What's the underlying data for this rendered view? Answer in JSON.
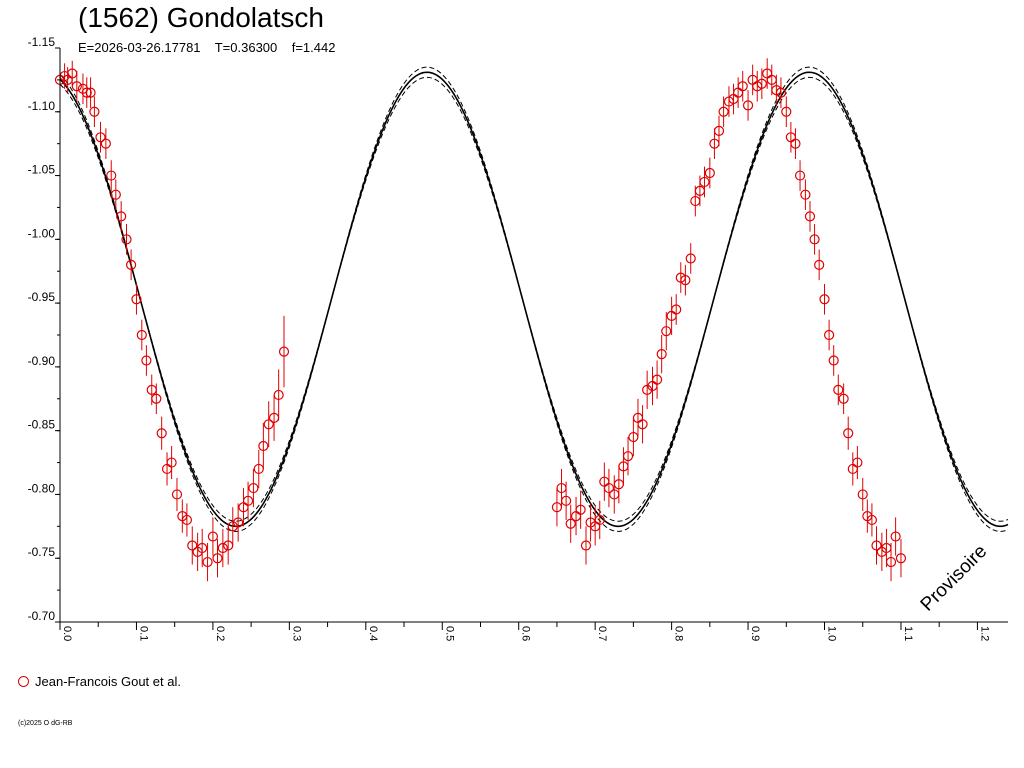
{
  "header": {
    "title": "(1562) Gondolatsch",
    "subtitle": "E=2026-03-26.17781    T=0.36300    f=1.442"
  },
  "legend": {
    "label": "Jean-Francois Gout et al."
  },
  "copyright": "(c)2025 O dG-RB",
  "chart_data": {
    "type": "scatter",
    "title": "(1562) Gondolatsch",
    "xlim": [
      0.0,
      1.24
    ],
    "ylim": [
      -1.15,
      -0.7
    ],
    "y_reversed": true,
    "x_ticks": [
      "0.0",
      "0.1",
      "0.2",
      "0.3",
      "0.4",
      "0.5",
      "0.6",
      "0.7",
      "0.8",
      "0.9",
      "1.0",
      "1.1",
      "1.2"
    ],
    "y_ticks": [
      "-1.15",
      "-1.10",
      "-1.05",
      "-1.00",
      "-0.95",
      "-0.90",
      "-0.85",
      "-0.80",
      "-0.75",
      "-0.70"
    ],
    "watermark": "Provisoire",
    "colors": {
      "points": "#e00000",
      "model": "#000000"
    },
    "model": {
      "mean": -0.953,
      "amplitude": 0.178,
      "phase_max": 0.48,
      "phase_extra": 0.985
    },
    "series": [
      {
        "name": "Jean-Francois Gout et al.",
        "points": [
          [
            0.0,
            -1.125,
            0.01
          ],
          [
            0.006,
            -1.128,
            0.01
          ],
          [
            0.01,
            -1.125,
            0.01
          ],
          [
            0.016,
            -1.13,
            0.01
          ],
          [
            0.022,
            -1.12,
            0.012
          ],
          [
            0.03,
            -1.118,
            0.012
          ],
          [
            0.035,
            -1.115,
            0.012
          ],
          [
            0.04,
            -1.115,
            0.012
          ],
          [
            0.045,
            -1.1,
            0.012
          ],
          [
            0.053,
            -1.08,
            0.012
          ],
          [
            0.06,
            -1.075,
            0.012
          ],
          [
            0.067,
            -1.05,
            0.012
          ],
          [
            0.073,
            -1.035,
            0.012
          ],
          [
            0.08,
            -1.018,
            0.012
          ],
          [
            0.087,
            -1.0,
            0.012
          ],
          [
            0.093,
            -0.98,
            0.012
          ],
          [
            0.1,
            -0.953,
            0.012
          ],
          [
            0.107,
            -0.925,
            0.012
          ],
          [
            0.113,
            -0.905,
            0.012
          ],
          [
            0.12,
            -0.882,
            0.012
          ],
          [
            0.126,
            -0.875,
            0.012
          ],
          [
            0.133,
            -0.848,
            0.013
          ],
          [
            0.14,
            -0.82,
            0.013
          ],
          [
            0.146,
            -0.825,
            0.013
          ],
          [
            0.153,
            -0.8,
            0.013
          ],
          [
            0.16,
            -0.783,
            0.013
          ],
          [
            0.166,
            -0.78,
            0.013
          ],
          [
            0.173,
            -0.76,
            0.015
          ],
          [
            0.18,
            -0.755,
            0.015
          ],
          [
            0.186,
            -0.758,
            0.015
          ],
          [
            0.193,
            -0.747,
            0.015
          ],
          [
            0.2,
            -0.767,
            0.015
          ],
          [
            0.206,
            -0.75,
            0.015
          ],
          [
            0.213,
            -0.758,
            0.015
          ],
          [
            0.22,
            -0.76,
            0.015
          ],
          [
            0.226,
            -0.775,
            0.015
          ],
          [
            0.233,
            -0.778,
            0.015
          ],
          [
            0.24,
            -0.79,
            0.015
          ],
          [
            0.246,
            -0.795,
            0.015
          ],
          [
            0.253,
            -0.805,
            0.015
          ],
          [
            0.26,
            -0.82,
            0.015
          ],
          [
            0.266,
            -0.838,
            0.018
          ],
          [
            0.273,
            -0.855,
            0.018
          ],
          [
            0.28,
            -0.86,
            0.018
          ],
          [
            0.286,
            -0.878,
            0.02
          ],
          [
            0.293,
            -0.912,
            0.028
          ],
          [
            0.65,
            -0.79,
            0.015
          ],
          [
            0.656,
            -0.805,
            0.015
          ],
          [
            0.662,
            -0.795,
            0.015
          ],
          [
            0.668,
            -0.777,
            0.015
          ],
          [
            0.675,
            -0.783,
            0.015
          ],
          [
            0.681,
            -0.788,
            0.015
          ],
          [
            0.688,
            -0.76,
            0.015
          ],
          [
            0.694,
            -0.778,
            0.015
          ],
          [
            0.7,
            -0.775,
            0.015
          ],
          [
            0.706,
            -0.78,
            0.015
          ],
          [
            0.712,
            -0.81,
            0.015
          ],
          [
            0.718,
            -0.805,
            0.015
          ],
          [
            0.725,
            -0.8,
            0.015
          ],
          [
            0.731,
            -0.808,
            0.015
          ],
          [
            0.737,
            -0.822,
            0.015
          ],
          [
            0.743,
            -0.83,
            0.015
          ],
          [
            0.75,
            -0.845,
            0.015
          ],
          [
            0.756,
            -0.86,
            0.015
          ],
          [
            0.762,
            -0.855,
            0.015
          ],
          [
            0.768,
            -0.882,
            0.015
          ],
          [
            0.775,
            -0.885,
            0.015
          ],
          [
            0.781,
            -0.89,
            0.015
          ],
          [
            0.787,
            -0.91,
            0.015
          ],
          [
            0.793,
            -0.928,
            0.015
          ],
          [
            0.8,
            -0.94,
            0.015
          ],
          [
            0.806,
            -0.945,
            0.012
          ],
          [
            0.812,
            -0.97,
            0.012
          ],
          [
            0.818,
            -0.968,
            0.012
          ],
          [
            0.825,
            -0.985,
            0.012
          ],
          [
            0.831,
            -1.03,
            0.012
          ],
          [
            0.837,
            -1.038,
            0.012
          ],
          [
            0.843,
            -1.045,
            0.012
          ],
          [
            0.85,
            -1.052,
            0.012
          ],
          [
            0.856,
            -1.075,
            0.012
          ],
          [
            0.862,
            -1.085,
            0.012
          ],
          [
            0.868,
            -1.1,
            0.012
          ],
          [
            0.875,
            -1.108,
            0.012
          ],
          [
            0.881,
            -1.11,
            0.012
          ],
          [
            0.887,
            -1.115,
            0.012
          ],
          [
            0.893,
            -1.12,
            0.012
          ],
          [
            0.9,
            -1.105,
            0.012
          ],
          [
            0.906,
            -1.125,
            0.012
          ],
          [
            0.912,
            -1.12,
            0.012
          ],
          [
            0.918,
            -1.122,
            0.012
          ],
          [
            0.925,
            -1.13,
            0.012
          ],
          [
            0.931,
            -1.125,
            0.012
          ],
          [
            0.937,
            -1.117,
            0.012
          ],
          [
            0.943,
            -1.115,
            0.012
          ],
          [
            0.95,
            -1.1,
            0.012
          ],
          [
            0.956,
            -1.08,
            0.012
          ],
          [
            0.962,
            -1.075,
            0.012
          ],
          [
            0.968,
            -1.05,
            0.012
          ],
          [
            0.975,
            -1.035,
            0.012
          ],
          [
            0.981,
            -1.018,
            0.012
          ],
          [
            0.987,
            -1.0,
            0.012
          ],
          [
            0.993,
            -0.98,
            0.012
          ],
          [
            1.0,
            -0.953,
            0.012
          ],
          [
            1.006,
            -0.925,
            0.012
          ],
          [
            1.012,
            -0.905,
            0.012
          ],
          [
            1.018,
            -0.882,
            0.012
          ],
          [
            1.025,
            -0.875,
            0.012
          ],
          [
            1.031,
            -0.848,
            0.013
          ],
          [
            1.037,
            -0.82,
            0.013
          ],
          [
            1.043,
            -0.825,
            0.013
          ],
          [
            1.05,
            -0.8,
            0.013
          ],
          [
            1.056,
            -0.783,
            0.013
          ],
          [
            1.062,
            -0.78,
            0.013
          ],
          [
            1.068,
            -0.76,
            0.015
          ],
          [
            1.075,
            -0.755,
            0.015
          ],
          [
            1.081,
            -0.758,
            0.015
          ],
          [
            1.087,
            -0.747,
            0.015
          ],
          [
            1.093,
            -0.767,
            0.015
          ],
          [
            1.1,
            -0.75,
            0.015
          ]
        ]
      }
    ]
  }
}
